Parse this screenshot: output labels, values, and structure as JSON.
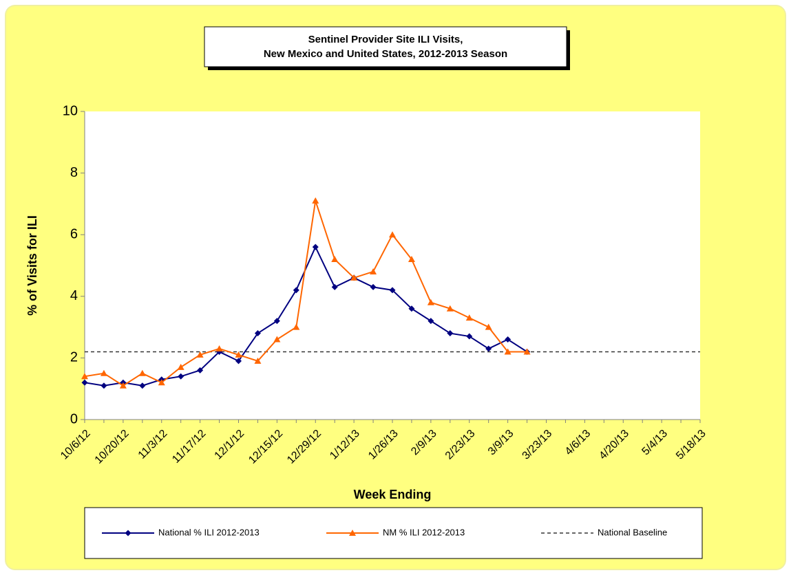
{
  "chart_data": {
    "type": "line",
    "title": "Sentinel Provider Site ILI Visits,",
    "subtitle": "New Mexico and United States,  2012-2013 Season",
    "x_label": "Week Ending",
    "y_label": "% of Visits for ILI",
    "categories": [
      "10/6/12",
      null,
      "10/20/12",
      null,
      "11/3/12",
      null,
      "11/17/12",
      null,
      "12/1/12",
      null,
      "12/15/12",
      null,
      "12/29/12",
      null,
      "1/12/13",
      null,
      "1/26/13",
      null,
      "2/9/13",
      null,
      "2/23/13",
      null,
      "3/9/13",
      null,
      "3/23/13",
      null,
      "4/6/13",
      null,
      "4/20/13",
      null,
      "5/4/13",
      null,
      "5/18/13"
    ],
    "series": [
      {
        "name": "National % ILI 2012-2013",
        "color": "#000080",
        "marker": "diamond",
        "values": [
          1.2,
          1.1,
          1.2,
          1.1,
          1.3,
          1.4,
          1.6,
          2.2,
          1.9,
          2.8,
          3.2,
          4.2,
          5.6,
          4.3,
          4.6,
          4.3,
          4.2,
          3.6,
          3.2,
          2.8,
          2.7,
          2.3,
          2.6,
          2.2,
          null,
          null,
          null,
          null,
          null,
          null,
          null,
          null,
          null
        ]
      },
      {
        "name": "NM % ILI 2012-2013",
        "color": "#ff6600",
        "marker": "triangle",
        "values": [
          1.4,
          1.5,
          1.1,
          1.5,
          1.2,
          1.7,
          2.1,
          2.3,
          2.1,
          1.9,
          2.6,
          3.0,
          7.1,
          5.2,
          4.6,
          4.8,
          6.0,
          5.2,
          3.8,
          3.6,
          3.3,
          3.0,
          2.2,
          2.2,
          null,
          null,
          null,
          null,
          null,
          null,
          null,
          null,
          null
        ]
      }
    ],
    "baseline": {
      "name": "National Baseline",
      "value": 2.2,
      "color": "#333333"
    },
    "ylim": [
      0,
      10
    ],
    "yticks": [
      0,
      2,
      4,
      6,
      8,
      10
    ],
    "grid": false,
    "legend": "bottom"
  }
}
